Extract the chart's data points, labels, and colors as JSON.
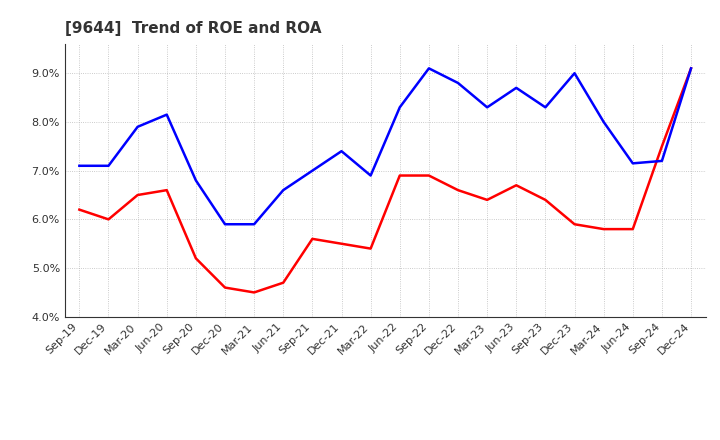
{
  "title": "[9644]  Trend of ROE and ROA",
  "x_labels": [
    "Sep-19",
    "Dec-19",
    "Mar-20",
    "Jun-20",
    "Sep-20",
    "Dec-20",
    "Mar-21",
    "Jun-21",
    "Sep-21",
    "Dec-21",
    "Mar-22",
    "Jun-22",
    "Sep-22",
    "Dec-22",
    "Mar-23",
    "Jun-23",
    "Sep-23",
    "Dec-23",
    "Mar-24",
    "Jun-24",
    "Sep-24",
    "Dec-24"
  ],
  "roe": [
    6.2,
    6.0,
    6.5,
    6.6,
    5.2,
    4.6,
    4.5,
    4.7,
    5.6,
    5.5,
    5.4,
    6.9,
    6.9,
    6.6,
    6.4,
    6.7,
    6.4,
    5.9,
    5.8,
    5.8,
    7.5,
    9.1
  ],
  "roa": [
    7.1,
    7.1,
    7.9,
    8.15,
    6.8,
    5.9,
    5.9,
    6.6,
    7.0,
    7.4,
    6.9,
    8.3,
    9.1,
    8.8,
    8.3,
    8.7,
    8.3,
    9.0,
    8.0,
    7.15,
    7.2,
    9.1
  ],
  "roe_color": "#ff0000",
  "roa_color": "#0000ff",
  "ylim_min": 4.0,
  "ylim_max": 9.6,
  "yticks": [
    4.0,
    5.0,
    6.0,
    7.0,
    8.0,
    9.0
  ],
  "background_color": "#ffffff",
  "grid_color": "#aaaaaa",
  "title_fontsize": 11,
  "legend_fontsize": 10,
  "tick_fontsize": 8,
  "title_color": "#333333"
}
